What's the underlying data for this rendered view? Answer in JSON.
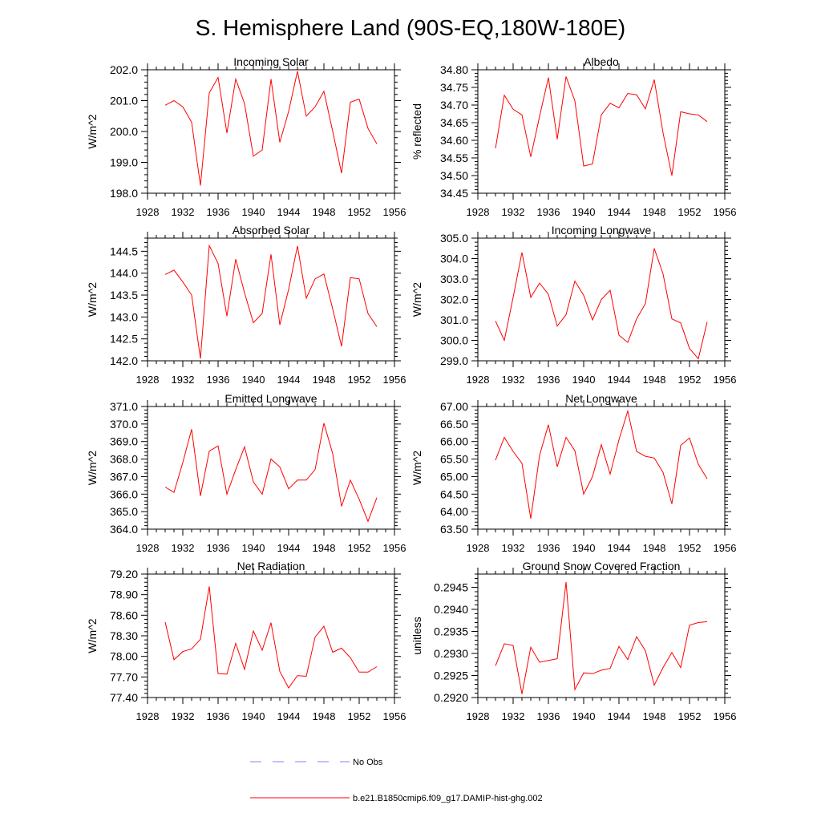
{
  "figure": {
    "title": "S. Hemisphere Land (90S-EQ,180W-180E)",
    "legend": [
      {
        "label": "No Obs",
        "color": "#8080ff",
        "style": "dashed"
      },
      {
        "label": "b.e21.B1850cmip6.f09_g17.DAMIP-hist-ghg.002",
        "color": "#ff0000",
        "style": "solid"
      }
    ]
  },
  "chart_data": [
    {
      "type": "line",
      "title": "Incoming Solar",
      "xlabel": "",
      "ylabel": "W/m^2",
      "xlim": [
        1928,
        1956
      ],
      "xticks": [
        "1928",
        "1932",
        "1936",
        "1940",
        "1944",
        "1948",
        "1952",
        "1956"
      ],
      "ylim": [
        198.0,
        202.0
      ],
      "yticks": [
        "198.0",
        "199.0",
        "200.0",
        "201.0",
        "202.0"
      ],
      "x": [
        1930,
        1931,
        1932,
        1933,
        1934,
        1935,
        1936,
        1937,
        1938,
        1939,
        1940,
        1941,
        1942,
        1943,
        1944,
        1945,
        1946,
        1947,
        1948,
        1949,
        1950,
        1951,
        1952,
        1953,
        1954
      ],
      "series": [
        {
          "name": "b.e21.B1850cmip6.f09_g17.DAMIP-hist-ghg.002",
          "color": "#ff0000",
          "values": [
            200.85,
            201.0,
            200.8,
            200.3,
            198.25,
            201.25,
            201.75,
            199.95,
            201.7,
            200.9,
            199.2,
            199.4,
            201.7,
            199.65,
            200.65,
            201.95,
            200.5,
            200.8,
            201.3,
            200.0,
            198.65,
            200.95,
            201.05,
            200.1,
            199.6
          ]
        }
      ]
    },
    {
      "type": "line",
      "title": "Albedo",
      "xlabel": "",
      "ylabel": "% reflected",
      "xlim": [
        1928,
        1956
      ],
      "xticks": [
        "1928",
        "1932",
        "1936",
        "1940",
        "1944",
        "1948",
        "1952",
        "1956"
      ],
      "ylim": [
        34.45,
        34.8
      ],
      "yticks": [
        "34.45",
        "34.50",
        "34.55",
        "34.60",
        "34.65",
        "34.70",
        "34.75",
        "34.80"
      ],
      "x": [
        1930,
        1931,
        1932,
        1933,
        1934,
        1935,
        1936,
        1937,
        1938,
        1939,
        1940,
        1941,
        1942,
        1943,
        1944,
        1945,
        1946,
        1947,
        1948,
        1949,
        1950,
        1951,
        1952,
        1953,
        1954
      ],
      "series": [
        {
          "name": "b.e21.B1850cmip6.f09_g17.DAMIP-hist-ghg.002",
          "color": "#ff0000",
          "values": [
            34.577,
            34.728,
            34.688,
            34.672,
            34.553,
            34.668,
            34.778,
            34.603,
            34.781,
            34.712,
            34.527,
            34.533,
            34.672,
            34.705,
            34.692,
            34.733,
            34.729,
            34.689,
            34.772,
            34.621,
            34.5,
            34.681,
            34.675,
            34.672,
            34.653
          ]
        }
      ]
    },
    {
      "type": "line",
      "title": "Absorbed Solar",
      "xlabel": "",
      "ylabel": "W/m^2",
      "xlim": [
        1928,
        1956
      ],
      "xticks": [
        "1928",
        "1932",
        "1936",
        "1940",
        "1944",
        "1948",
        "1952",
        "1956"
      ],
      "ylim": [
        142.0,
        144.8
      ],
      "yticks": [
        "142.0",
        "142.5",
        "143.0",
        "143.5",
        "144.0",
        "144.5"
      ],
      "x": [
        1930,
        1931,
        1932,
        1933,
        1934,
        1935,
        1936,
        1937,
        1938,
        1939,
        1940,
        1941,
        1942,
        1943,
        1944,
        1945,
        1946,
        1947,
        1948,
        1949,
        1950,
        1951,
        1952,
        1953,
        1954
      ],
      "series": [
        {
          "name": "b.e21.B1850cmip6.f09_g17.DAMIP-hist-ghg.002",
          "color": "#ff0000",
          "values": [
            143.97,
            144.07,
            143.8,
            143.5,
            142.05,
            144.63,
            144.22,
            143.02,
            144.32,
            143.55,
            142.87,
            143.08,
            144.43,
            142.82,
            143.63,
            144.62,
            143.43,
            143.87,
            143.98,
            143.18,
            142.33,
            143.9,
            143.87,
            143.08,
            142.78
          ]
        }
      ]
    },
    {
      "type": "line",
      "title": "Incoming Longwave",
      "xlabel": "",
      "ylabel": "W/m^2",
      "xlim": [
        1928,
        1956
      ],
      "xticks": [
        "1928",
        "1932",
        "1936",
        "1940",
        "1944",
        "1948",
        "1952",
        "1956"
      ],
      "ylim": [
        299.0,
        305.0
      ],
      "yticks": [
        "299.0",
        "300.0",
        "301.0",
        "302.0",
        "303.0",
        "304.0",
        "305.0"
      ],
      "x": [
        1930,
        1931,
        1932,
        1933,
        1934,
        1935,
        1936,
        1937,
        1938,
        1939,
        1940,
        1941,
        1942,
        1943,
        1944,
        1945,
        1946,
        1947,
        1948,
        1949,
        1950,
        1951,
        1952,
        1953,
        1954
      ],
      "series": [
        {
          "name": "b.e21.B1850cmip6.f09_g17.DAMIP-hist-ghg.002",
          "color": "#ff0000",
          "values": [
            300.95,
            300.0,
            302.1,
            304.3,
            302.1,
            302.8,
            302.25,
            300.7,
            301.25,
            302.9,
            302.2,
            301.0,
            302.0,
            302.45,
            300.25,
            299.9,
            301.05,
            301.8,
            304.5,
            303.25,
            301.05,
            300.85,
            299.6,
            299.1,
            300.9
          ]
        }
      ]
    },
    {
      "type": "line",
      "title": "Emitted Longwave",
      "xlabel": "",
      "ylabel": "W/m^2",
      "xlim": [
        1928,
        1956
      ],
      "xticks": [
        "1928",
        "1932",
        "1936",
        "1940",
        "1944",
        "1948",
        "1952",
        "1956"
      ],
      "ylim": [
        364.0,
        371.0
      ],
      "yticks": [
        "364.0",
        "365.0",
        "366.0",
        "367.0",
        "368.0",
        "369.0",
        "370.0",
        "371.0"
      ],
      "x": [
        1930,
        1931,
        1932,
        1933,
        1934,
        1935,
        1936,
        1937,
        1938,
        1939,
        1940,
        1941,
        1942,
        1943,
        1944,
        1945,
        1946,
        1947,
        1948,
        1949,
        1950,
        1951,
        1952,
        1953,
        1954
      ],
      "series": [
        {
          "name": "b.e21.B1850cmip6.f09_g17.DAMIP-hist-ghg.002",
          "color": "#ff0000",
          "values": [
            366.4,
            366.1,
            367.8,
            369.7,
            365.9,
            368.45,
            368.75,
            366.0,
            367.4,
            368.7,
            366.7,
            366.0,
            368.0,
            367.55,
            366.3,
            366.8,
            366.8,
            367.4,
            370.05,
            368.3,
            365.3,
            366.8,
            365.7,
            364.45,
            365.8
          ]
        }
      ]
    },
    {
      "type": "line",
      "title": "Net Longwave",
      "xlabel": "",
      "ylabel": "W/m^2",
      "xlim": [
        1928,
        1956
      ],
      "xticks": [
        "1928",
        "1932",
        "1936",
        "1940",
        "1944",
        "1948",
        "1952",
        "1956"
      ],
      "ylim": [
        63.5,
        67.0
      ],
      "yticks": [
        "63.50",
        "64.00",
        "64.50",
        "65.00",
        "65.50",
        "66.00",
        "66.50",
        "67.00"
      ],
      "x": [
        1930,
        1931,
        1932,
        1933,
        1934,
        1935,
        1936,
        1937,
        1938,
        1939,
        1940,
        1941,
        1942,
        1943,
        1944,
        1945,
        1946,
        1947,
        1948,
        1949,
        1950,
        1951,
        1952,
        1953,
        1954
      ],
      "series": [
        {
          "name": "b.e21.B1850cmip6.f09_g17.DAMIP-hist-ghg.002",
          "color": "#ff0000",
          "values": [
            65.47,
            66.12,
            65.72,
            65.38,
            63.8,
            65.61,
            66.48,
            65.28,
            66.12,
            65.74,
            64.5,
            65.0,
            65.91,
            65.07,
            66.05,
            66.87,
            65.72,
            65.58,
            65.53,
            65.12,
            64.22,
            65.89,
            66.1,
            65.35,
            64.94
          ]
        }
      ]
    },
    {
      "type": "line",
      "title": "Net Radiation",
      "xlabel": "",
      "ylabel": "W/m^2",
      "xlim": [
        1928,
        1956
      ],
      "xticks": [
        "1928",
        "1932",
        "1936",
        "1940",
        "1944",
        "1948",
        "1952",
        "1956"
      ],
      "ylim": [
        77.4,
        79.2
      ],
      "yticks": [
        "77.40",
        "77.70",
        "78.00",
        "78.30",
        "78.60",
        "78.90",
        "79.20"
      ],
      "x": [
        1930,
        1931,
        1932,
        1933,
        1934,
        1935,
        1936,
        1937,
        1938,
        1939,
        1940,
        1941,
        1942,
        1943,
        1944,
        1945,
        1946,
        1947,
        1948,
        1949,
        1950,
        1951,
        1952,
        1953,
        1954
      ],
      "series": [
        {
          "name": "b.e21.B1850cmip6.f09_g17.DAMIP-hist-ghg.002",
          "color": "#ff0000",
          "values": [
            78.5,
            77.95,
            78.07,
            78.11,
            78.25,
            79.02,
            77.75,
            77.74,
            78.19,
            77.81,
            78.37,
            78.09,
            78.49,
            77.78,
            77.54,
            77.72,
            77.71,
            78.28,
            78.44,
            78.06,
            78.12,
            77.98,
            77.77,
            77.77,
            77.85
          ]
        }
      ]
    },
    {
      "type": "line",
      "title": "Ground Snow Covered Fraction",
      "xlabel": "",
      "ylabel": "unitless",
      "xlim": [
        1928,
        1956
      ],
      "xticks": [
        "1928",
        "1932",
        "1936",
        "1940",
        "1944",
        "1948",
        "1952",
        "1956"
      ],
      "ylim": [
        0.292,
        0.2948
      ],
      "yticks": [
        "0.2920",
        "0.2925",
        "0.2930",
        "0.2935",
        "0.2940",
        "0.2945"
      ],
      "x": [
        1930,
        1931,
        1932,
        1933,
        1934,
        1935,
        1936,
        1937,
        1938,
        1939,
        1940,
        1941,
        1942,
        1943,
        1944,
        1945,
        1946,
        1947,
        1948,
        1949,
        1950,
        1951,
        1952,
        1953,
        1954
      ],
      "series": [
        {
          "name": "b.e21.B1850cmip6.f09_g17.DAMIP-hist-ghg.002",
          "color": "#ff0000",
          "values": [
            0.29272,
            0.29322,
            0.29318,
            0.29208,
            0.29314,
            0.2928,
            0.29284,
            0.29288,
            0.29462,
            0.29218,
            0.29256,
            0.29254,
            0.29262,
            0.29266,
            0.29316,
            0.29286,
            0.29338,
            0.29306,
            0.29228,
            0.29268,
            0.29302,
            0.29268,
            0.29364,
            0.2937,
            0.29372
          ]
        }
      ]
    }
  ]
}
